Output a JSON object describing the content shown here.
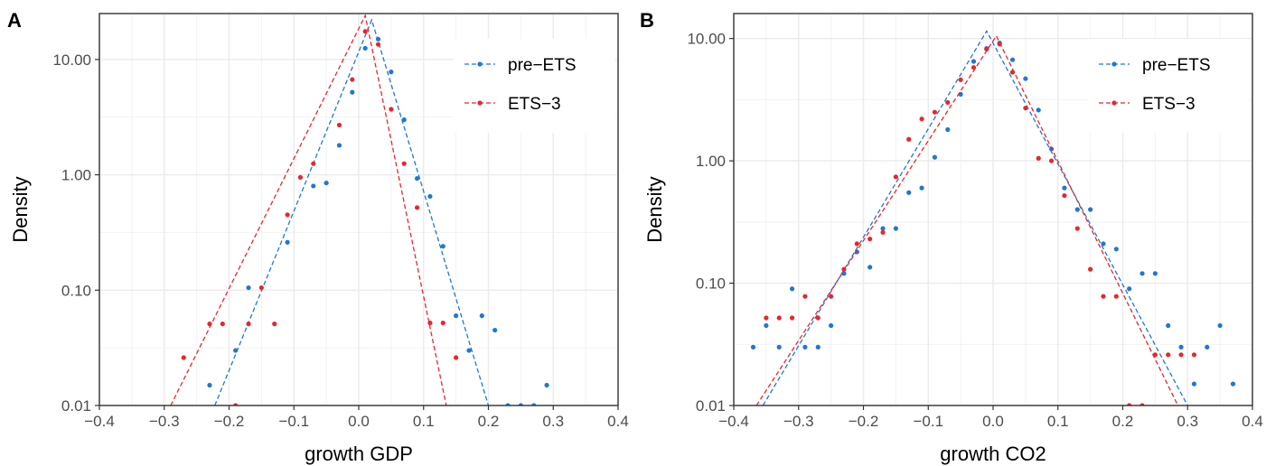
{
  "chart_data": [
    {
      "type": "scatter",
      "panel_label": "A",
      "xlabel": "growth GDP",
      "ylabel": "Density",
      "xlim": [
        -0.4,
        0.4
      ],
      "ylim": [
        0.01,
        25
      ],
      "y_scale": "log10",
      "x_ticks": [
        -0.4,
        -0.3,
        -0.2,
        -0.1,
        0.0,
        0.1,
        0.2,
        0.3,
        0.4
      ],
      "x_tick_labels": [
        "−0.4",
        "−0.3",
        "−0.2",
        "−0.1",
        "0.0",
        "0.1",
        "0.2",
        "0.3",
        "0.4"
      ],
      "y_ticks": [
        0.01,
        0.1,
        1,
        10
      ],
      "y_tick_labels": [
        "0.01",
        "0.10",
        "1.00",
        "10.00"
      ],
      "grid": true,
      "legend_position": "top-right",
      "series": [
        {
          "name": "pre−ETS",
          "color": "#1f78d1",
          "x": [
            -0.23,
            -0.19,
            -0.17,
            -0.11,
            -0.07,
            -0.05,
            -0.03,
            -0.01,
            0.01,
            0.03,
            0.05,
            0.07,
            0.09,
            0.11,
            0.13,
            0.15,
            0.17,
            0.19,
            0.21,
            0.23,
            0.25,
            0.27,
            0.29
          ],
          "y": [
            0.015,
            0.03,
            0.105,
            0.26,
            0.8,
            0.85,
            1.8,
            5.2,
            12.5,
            15.0,
            7.8,
            3.0,
            0.93,
            0.65,
            0.24,
            0.06,
            0.03,
            0.06,
            0.045,
            0.01,
            0.01,
            0.01,
            0.015
          ],
          "fit_line": {
            "x": [
              -0.222,
              0.02,
              0.2
            ],
            "y": [
              0.01,
              22.0,
              0.01
            ]
          }
        },
        {
          "name": "ETS−3",
          "color": "#e8262b",
          "x": [
            -0.27,
            -0.23,
            -0.21,
            -0.19,
            -0.17,
            -0.15,
            -0.13,
            -0.11,
            -0.09,
            -0.07,
            -0.03,
            -0.01,
            0.01,
            0.03,
            0.05,
            0.07,
            0.09,
            0.11,
            0.13,
            0.15
          ],
          "y": [
            0.026,
            0.051,
            0.051,
            0.01,
            0.051,
            0.105,
            0.051,
            0.45,
            0.95,
            1.25,
            2.7,
            6.7,
            17.5,
            13.5,
            3.7,
            1.25,
            0.52,
            0.052,
            0.052,
            0.026
          ],
          "fit_line": {
            "x": [
              -0.29,
              0.01,
              0.135
            ],
            "y": [
              0.01,
              24.0,
              0.01
            ]
          }
        }
      ]
    },
    {
      "type": "scatter",
      "panel_label": "B",
      "xlabel": "growth CO2",
      "ylabel": "Density",
      "xlim": [
        -0.4,
        0.4
      ],
      "ylim": [
        0.01,
        16
      ],
      "y_scale": "log10",
      "x_ticks": [
        -0.4,
        -0.3,
        -0.2,
        -0.1,
        0.0,
        0.1,
        0.2,
        0.3,
        0.4
      ],
      "x_tick_labels": [
        "−0.4",
        "−0.3",
        "−0.2",
        "−0.1",
        "0.0",
        "0.1",
        "0.2",
        "0.3",
        "0.4"
      ],
      "y_ticks": [
        0.01,
        0.1,
        1,
        10
      ],
      "y_tick_labels": [
        "0.01",
        "0.10",
        "1.00",
        "10.00"
      ],
      "grid": true,
      "legend_position": "top-right",
      "series": [
        {
          "name": "pre−ETS",
          "color": "#1f78d1",
          "x": [
            -0.37,
            -0.35,
            -0.33,
            -0.31,
            -0.29,
            -0.27,
            -0.25,
            -0.23,
            -0.21,
            -0.19,
            -0.17,
            -0.15,
            -0.13,
            -0.11,
            -0.09,
            -0.07,
            -0.05,
            -0.03,
            -0.01,
            0.01,
            0.03,
            0.05,
            0.07,
            0.09,
            0.11,
            0.13,
            0.15,
            0.17,
            0.19,
            0.21,
            0.23,
            0.25,
            0.27,
            0.29,
            0.31,
            0.33,
            0.35,
            0.37
          ],
          "y": [
            0.03,
            0.045,
            0.03,
            0.09,
            0.03,
            0.03,
            0.045,
            0.12,
            0.18,
            0.135,
            0.28,
            0.28,
            0.55,
            0.6,
            1.07,
            1.8,
            3.5,
            6.5,
            8.3,
            9.2,
            6.7,
            4.7,
            2.6,
            1.25,
            0.6,
            0.4,
            0.4,
            0.21,
            0.19,
            0.09,
            0.12,
            0.12,
            0.045,
            0.03,
            0.015,
            0.03,
            0.045,
            0.015
          ],
          "fit_line": {
            "x": [
              -0.355,
              -0.01,
              0.3
            ],
            "y": [
              0.01,
              11.5,
              0.01
            ]
          }
        },
        {
          "name": "ETS−3",
          "color": "#e8262b",
          "x": [
            -0.35,
            -0.33,
            -0.31,
            -0.29,
            -0.27,
            -0.25,
            -0.23,
            -0.21,
            -0.19,
            -0.17,
            -0.15,
            -0.13,
            -0.11,
            -0.09,
            -0.07,
            -0.05,
            -0.03,
            -0.01,
            0.01,
            0.03,
            0.05,
            0.07,
            0.09,
            0.11,
            0.13,
            0.15,
            0.17,
            0.19,
            0.21,
            0.23,
            0.25,
            0.27,
            0.29,
            0.31
          ],
          "y": [
            0.052,
            0.052,
            0.052,
            0.078,
            0.052,
            0.078,
            0.13,
            0.21,
            0.23,
            0.26,
            0.74,
            1.5,
            2.2,
            2.5,
            3.0,
            4.6,
            5.8,
            8.2,
            9.0,
            5.3,
            2.7,
            1.05,
            1.0,
            0.52,
            0.28,
            0.13,
            0.078,
            0.078,
            0.01,
            0.01,
            0.026,
            0.026,
            0.026,
            0.026
          ],
          "fit_line": {
            "x": [
              -0.365,
              0.005,
              0.285
            ],
            "y": [
              0.01,
              10.5,
              0.01
            ]
          }
        }
      ]
    }
  ]
}
